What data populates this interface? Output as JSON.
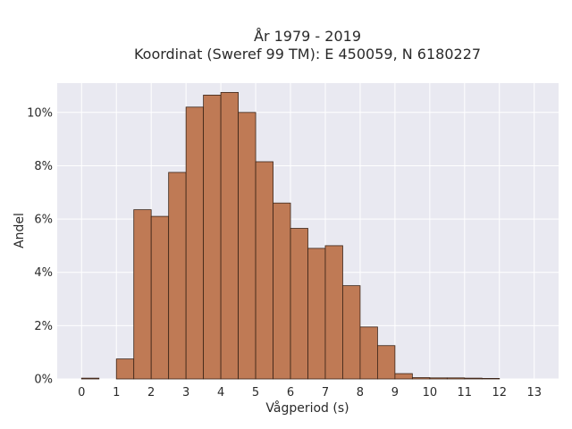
{
  "chart_data": {
    "type": "bar",
    "title_line1": "År 1979 - 2019",
    "title_line2": "Koordinat (Sweref 99 TM): E 450059, N 6180227",
    "xlabel": "Vågperiod (s)",
    "ylabel": "Andel",
    "bin_width": 0.5,
    "x_ticks": [
      0,
      1,
      2,
      3,
      4,
      5,
      6,
      7,
      8,
      9,
      10,
      11,
      12,
      13
    ],
    "y_ticks": [
      0,
      2,
      4,
      6,
      8,
      10
    ],
    "y_tick_suffix": "%",
    "xlim": [
      -0.7,
      13.7
    ],
    "ylim": [
      0,
      11.1
    ],
    "grid": true,
    "legend": "none",
    "bar_color": "#bf7a55",
    "bar_edge_color": "#3b2417",
    "plot_background": "#e9e9f1",
    "bins": [
      {
        "x0": 0.0,
        "value": 0.03
      },
      {
        "x0": 1.0,
        "value": 0.75
      },
      {
        "x0": 1.5,
        "value": 6.35
      },
      {
        "x0": 2.0,
        "value": 6.1
      },
      {
        "x0": 2.5,
        "value": 7.75
      },
      {
        "x0": 3.0,
        "value": 10.2
      },
      {
        "x0": 3.5,
        "value": 10.65
      },
      {
        "x0": 4.0,
        "value": 10.75
      },
      {
        "x0": 4.5,
        "value": 10.0
      },
      {
        "x0": 5.0,
        "value": 8.15
      },
      {
        "x0": 5.5,
        "value": 6.6
      },
      {
        "x0": 6.0,
        "value": 5.65
      },
      {
        "x0": 6.5,
        "value": 4.9
      },
      {
        "x0": 7.0,
        "value": 5.0
      },
      {
        "x0": 7.5,
        "value": 3.5
      },
      {
        "x0": 8.0,
        "value": 1.95
      },
      {
        "x0": 8.5,
        "value": 1.25
      },
      {
        "x0": 9.0,
        "value": 0.2
      },
      {
        "x0": 9.5,
        "value": 0.05
      },
      {
        "x0": 10.0,
        "value": 0.04
      },
      {
        "x0": 10.5,
        "value": 0.04
      },
      {
        "x0": 11.0,
        "value": 0.03
      },
      {
        "x0": 11.5,
        "value": 0.02
      }
    ]
  }
}
